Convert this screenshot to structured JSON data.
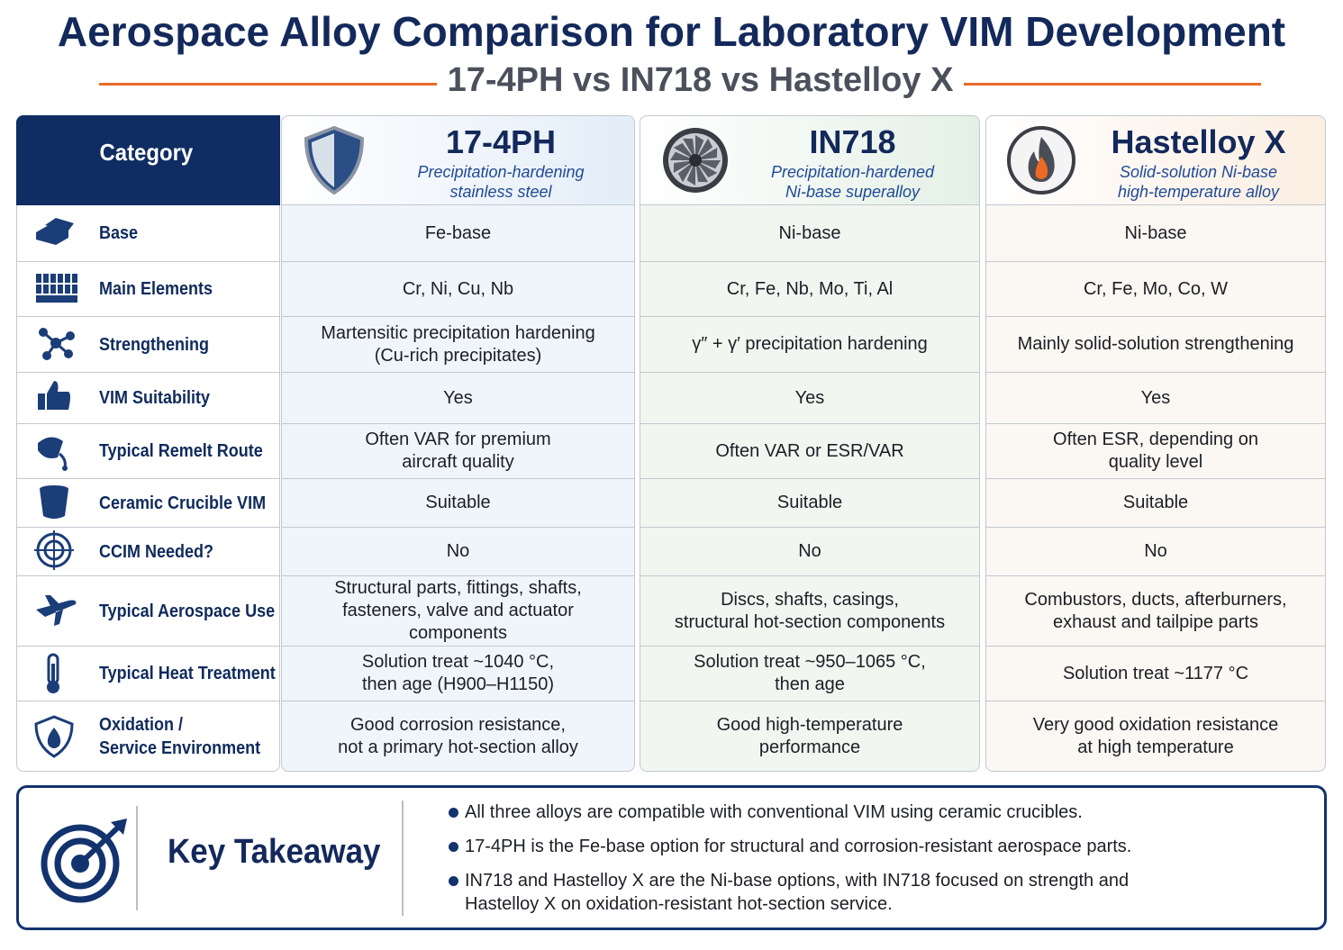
{
  "header": {
    "title": "Aerospace Alloy Comparison for Laboratory VIM Development",
    "subtitle": "17-4PH vs IN718 vs Hastelloy X"
  },
  "table": {
    "category_header": "Category",
    "columns": [
      {
        "name": "17-4PH",
        "description": [
          "Precipitation-hardening",
          "stainless steel"
        ]
      },
      {
        "name": "IN718",
        "description": [
          "Precipitation-hardened",
          "Ni-base superalloy"
        ]
      },
      {
        "name": "Hastelloy X",
        "description": [
          "Solid-solution Ni-base",
          "high-temperature alloy"
        ]
      }
    ],
    "rows": [
      {
        "category": [
          "Base"
        ],
        "cells": [
          [
            "Fe-base"
          ],
          [
            "Ni-base"
          ],
          [
            "Ni-base"
          ]
        ]
      },
      {
        "category": [
          "Main Elements"
        ],
        "cells": [
          [
            "Cr, Ni, Cu, Nb"
          ],
          [
            "Cr, Fe, Nb, Mo, Ti, Al"
          ],
          [
            "Cr, Fe, Mo, Co, W"
          ]
        ]
      },
      {
        "category": [
          "Strengthening"
        ],
        "cells": [
          [
            "Martensitic precipitation hardening",
            "(Cu-rich precipitates)"
          ],
          [
            "γ″ + γ′ precipitation hardening"
          ],
          [
            "Mainly solid-solution strengthening"
          ]
        ]
      },
      {
        "category": [
          "VIM Suitability"
        ],
        "cells": [
          [
            "Yes"
          ],
          [
            "Yes"
          ],
          [
            "Yes"
          ]
        ]
      },
      {
        "category": [
          "Typical Remelt Route"
        ],
        "cells": [
          [
            "Often VAR for premium",
            "aircraft quality"
          ],
          [
            "Often VAR or ESR/VAR"
          ],
          [
            "Often ESR, depending on",
            "quality level"
          ]
        ]
      },
      {
        "category": [
          "Ceramic Crucible VIM"
        ],
        "cells": [
          [
            "Suitable"
          ],
          [
            "Suitable"
          ],
          [
            "Suitable"
          ]
        ]
      },
      {
        "category": [
          "CCIM Needed?"
        ],
        "cells": [
          [
            "No"
          ],
          [
            "No"
          ],
          [
            "No"
          ]
        ]
      },
      {
        "category": [
          "Typical Aerospace Use"
        ],
        "cells": [
          [
            "Structural parts, fittings, shafts,",
            "fasteners, valve and actuator",
            "components"
          ],
          [
            "Discs, shafts, casings,",
            "structural hot-section components"
          ],
          [
            "Combustors, ducts, afterburners,",
            "exhaust and tailpipe parts"
          ]
        ]
      },
      {
        "category": [
          "Typical Heat Treatment"
        ],
        "cells": [
          [
            "Solution treat ~1040 °C,",
            "then age (H900–H1150)"
          ],
          [
            "Solution treat ~950–1065 °C,",
            "then age"
          ],
          [
            "Solution treat ~1177 °C"
          ]
        ]
      },
      {
        "category": [
          "Oxidation /",
          "Service Environment"
        ],
        "cells": [
          [
            "Good corrosion resistance,",
            "not a primary hot-section alloy"
          ],
          [
            "Good high-temperature",
            "performance"
          ],
          [
            "Very good oxidation resistance",
            "at high temperature"
          ]
        ]
      }
    ]
  },
  "takeaway": {
    "title": "Key Takeaway",
    "points": [
      [
        "All three alloys are compatible with conventional VIM using ceramic crucibles."
      ],
      [
        "17-4PH is the Fe-base option for structural and corrosion-resistant aerospace parts."
      ],
      [
        "IN718 and Hastelloy X are the Ni-base options, with IN718 focused on strength and",
        "Hastelloy X on oxidation-resistant hot-section service."
      ]
    ]
  }
}
